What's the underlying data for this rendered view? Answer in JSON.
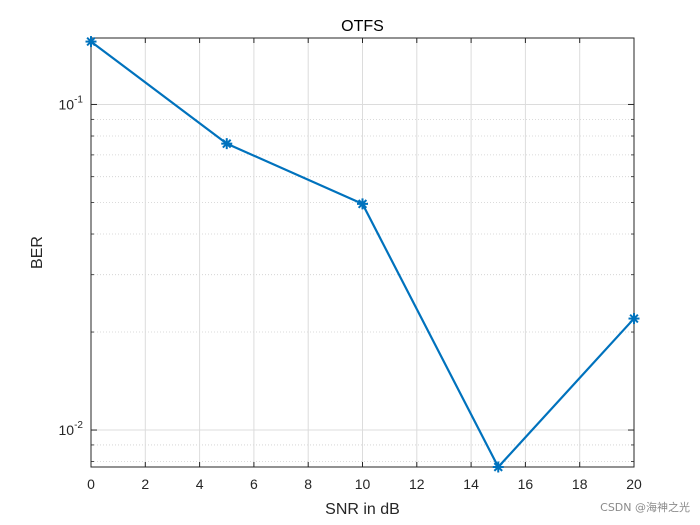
{
  "chart_data": {
    "type": "line",
    "title": "OTFS",
    "xlabel": "SNR in dB",
    "ylabel": "BER",
    "x": [
      0,
      5,
      10,
      15,
      20
    ],
    "series": [
      {
        "values": [
          0.156,
          0.0758,
          0.0495,
          0.0077,
          0.022
        ],
        "color": "#0072BD",
        "marker": "asterisk"
      }
    ],
    "xlim": [
      0,
      20
    ],
    "ylim": [
      0.0077,
      0.16
    ],
    "yscale": "log",
    "xticks": [
      0,
      2,
      4,
      6,
      8,
      10,
      12,
      14,
      16,
      18,
      20
    ],
    "xtick_labels": [
      "0",
      "2",
      "4",
      "6",
      "8",
      "10",
      "12",
      "14",
      "16",
      "18",
      "20"
    ],
    "yticks": [
      0.01,
      0.1
    ],
    "ytick_labels": [
      {
        "base": "10",
        "exp": "-2"
      },
      {
        "base": "10",
        "exp": "-1"
      }
    ],
    "grid": true,
    "minor_grid": true
  },
  "watermark": "CSDN @海神之光"
}
